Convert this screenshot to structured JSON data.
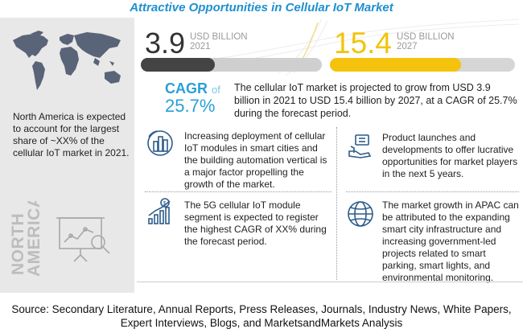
{
  "title": "Attractive Opportunities in Cellular IoT  Market",
  "left_panel": {
    "note": "North America is expected to account for the largest share of ~XX% of the cellular IoT market in 2021.",
    "region": [
      "NORTH",
      "AMERICA"
    ]
  },
  "market_2021": {
    "value": "3.9",
    "unit": "USD BILLION",
    "year": "2021",
    "bar_fill_fraction": 0.41
  },
  "market_2027": {
    "value": "15.4",
    "unit": "USD BILLION",
    "year": "2027",
    "bar_fill_fraction": 0.71
  },
  "cagr": {
    "label": "CAGR",
    "of": "of",
    "value": "25.7%"
  },
  "summary": "The cellular IoT market is projected to grow from USD 3.9 billion in 2021 to USD 15.4 billion by 2027, at a CAGR of 25.7% during the forecast period.",
  "highlights": [
    {
      "icon": "smart-city-icon",
      "text": "Increasing deployment of cellular IoT modules in smart cities and the building  automation vertical is a major factor propelling the growth of the market."
    },
    {
      "icon": "growth-chart-icon",
      "text": "The 5G cellular IoT module segment is expected to register the highest CAGR of XX% during the forecast period."
    },
    {
      "icon": "product-launch-icon",
      "text": "Product launches and developments to offer lucrative opportunities for market players in the next 5 years."
    },
    {
      "icon": "globe-network-icon",
      "text": "The market growth in APAC can be attributed to the expanding smart city infrastructure and increasing government-led projects related to smart parking, smart lights, and environmental monitoring."
    }
  ],
  "colors": {
    "title": "#1f8fd0",
    "accent_yellow": "#f5c30d",
    "cagr_blue": "#2a9fd8",
    "bar_dark": "#444444"
  },
  "source": "Source: Secondary Literature, Annual Reports, Press Releases, Journals, Industry News, White Papers, Expert Interviews, Blogs, and MarketsandMarkets Analysis"
}
